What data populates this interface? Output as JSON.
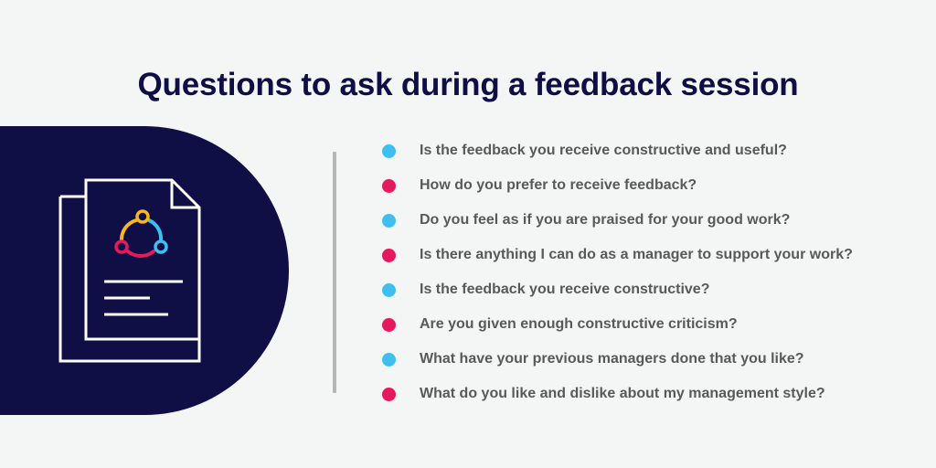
{
  "title": "Questions to ask during a feedback session",
  "colors": {
    "navy": "#0f0e45",
    "cyan": "#3ebfef",
    "magenta": "#e5195e",
    "yellow": "#f6b81c",
    "text": "#595959"
  },
  "illustration": {
    "icon": "feedback-document-icon"
  },
  "questions": [
    {
      "text": "Is the feedback you receive constructive and useful?",
      "bullet": "cyan"
    },
    {
      "text": "How do you prefer to receive feedback?",
      "bullet": "magenta"
    },
    {
      "text": "Do you feel as if you are praised for your good work?",
      "bullet": "cyan"
    },
    {
      "text": "Is there anything I can do as a manager to support your work?",
      "bullet": "magenta"
    },
    {
      "text": "Is the feedback you receive constructive?",
      "bullet": "cyan"
    },
    {
      "text": "Are you given enough constructive criticism?",
      "bullet": "magenta"
    },
    {
      "text": "What have your previous managers done that you like?",
      "bullet": "cyan"
    },
    {
      "text": "What do you like and dislike about my management style?",
      "bullet": "magenta"
    }
  ]
}
